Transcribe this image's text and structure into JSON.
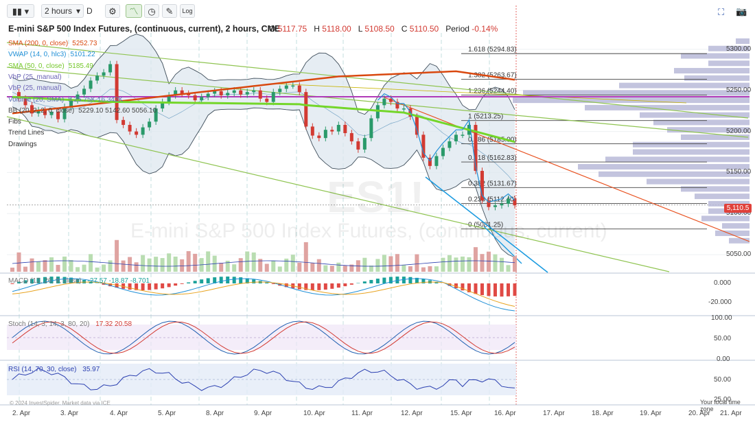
{
  "toolbar": {
    "chart_type_icon": "candles-icon",
    "interval": "2 hours",
    "interval_caret": "▾",
    "period_letter": "D",
    "log_label": "Log"
  },
  "header": {
    "title": "E-mini S&P 500 Index Futures, (continuous, current), 2 hours, CME",
    "open_label": "O",
    "open": "5117.75",
    "high_label": "H",
    "high": "5118.00",
    "low_label": "L",
    "low": "5108.50",
    "close_label": "C",
    "close": "5110.50",
    "period_label": "Period",
    "period": "-0.14%"
  },
  "legend": [
    {
      "label": "SMA (200, 0, close)",
      "value": "5252.73",
      "color": "#d9480f"
    },
    {
      "label": "VWAP (14, 0, hlc3)",
      "value": "5101.22",
      "color": "#1f8fd6"
    },
    {
      "label": "SMA (50, 0, close)",
      "value": "5185.49",
      "color": "#74c72a"
    },
    {
      "label": "VbP (25, manual)",
      "value": "",
      "color": "#6b63b5"
    },
    {
      "label": "VbP (25, manual)",
      "value": "",
      "color": "#6b63b5"
    },
    {
      "label": "Volume (20, SMA)",
      "value": "5,25.75K  16.342K",
      "color": "#5b6fb0"
    },
    {
      "label": "BB (20, 2, 2, 0, close)",
      "value": "5229.10  5142.60  5056.10",
      "color": "#444444"
    },
    {
      "label": "Fibs",
      "value": "",
      "color": "#333333"
    },
    {
      "label": "Trend Lines",
      "value": "",
      "color": "#333333"
    },
    {
      "label": "Drawings",
      "value": "",
      "color": "#333333"
    }
  ],
  "watermark": {
    "symbol": "ES1!",
    "name": "E-mini S&P 500 Index Futures, (continuous, current)"
  },
  "last_price": "5,110.5",
  "price_axis": [
    "5300.00",
    "5250.00",
    "5200.00",
    "5150.00",
    "5100.00",
    "5050.00"
  ],
  "macd": {
    "label": "MACD (12, 26, 9, close)",
    "values": "-27.57  -18.87  -8.701",
    "axis": [
      "0.000",
      "-20.000"
    ]
  },
  "stoch": {
    "label": "Stoch (14, 3, 14, 3, 80, 20)",
    "values": "17.32  20.58",
    "axis": [
      "100.00",
      "50.00",
      "0.00"
    ]
  },
  "rsi": {
    "label": "RSI (14, 70, 30, close)",
    "value": "35.97",
    "axis": [
      "50.00",
      "25.00"
    ]
  },
  "footer": {
    "copyright": "© 2024 InvestSpider. Market data via ICE",
    "timezone": "Your local time zone"
  },
  "chart_data": {
    "type": "line",
    "title": "E-mini S&P 500 Index Futures, (continuous, current), 2 hours, CME",
    "x_labels": [
      "2. Apr",
      "3. Apr",
      "4. Apr",
      "5. Apr",
      "8. Apr",
      "9. Apr",
      "10. Apr",
      "11. Apr",
      "12. Apr",
      "15. Apr",
      "16. Apr",
      "17. Apr",
      "18. Apr",
      "19. Apr",
      "20. Apr",
      "21. Apr"
    ],
    "ylim": [
      5030,
      5320
    ],
    "price_ticks": [
      5300,
      5250,
      5200,
      5150,
      5100,
      5050
    ],
    "close_series": [
      5248,
      5240,
      5232,
      5222,
      5226,
      5220,
      5224,
      5215,
      5230,
      5238,
      5245,
      5252,
      5262,
      5268,
      5272,
      5282,
      5214,
      5208,
      5200,
      5196,
      5205,
      5212,
      5228,
      5236,
      5244,
      5250,
      5246,
      5244,
      5238,
      5242,
      5246,
      5249,
      5244,
      5247,
      5250,
      5245,
      5248,
      5250,
      5240,
      5236,
      5248,
      5252,
      5256,
      5256,
      5248,
      5206,
      5195,
      5192,
      5202,
      5200,
      5208,
      5198,
      5188,
      5178,
      5192,
      5216,
      5232,
      5240,
      5236,
      5228,
      5228,
      5218,
      5196,
      5168,
      5158,
      5170,
      5180,
      5188,
      5196,
      5196,
      5208,
      5152,
      5116,
      5108,
      5110,
      5112,
      5118,
      5110
    ],
    "fib_levels": [
      {
        "label": "1.618 (5294.83)",
        "value": 5294.83
      },
      {
        "label": "1.382 (5263.67)",
        "value": 5263.67
      },
      {
        "label": "1.236 (5244.40)",
        "value": 5244.4
      },
      {
        "label": "1 (5213.25)",
        "value": 5213.25
      },
      {
        "label": "0.786 (5185.00)",
        "value": 5185.0
      },
      {
        "label": "0.618 (5162.83)",
        "value": 5162.83
      },
      {
        "label": "0.382 (5131.67)",
        "value": 5131.67
      },
      {
        "label": "0.236 (5112.40)",
        "value": 5112.4
      },
      {
        "label": "0 (5081.25)",
        "value": 5081.25
      }
    ],
    "sma200_value": 5252.73,
    "vwap_value": 5101.22,
    "sma50_value": 5185.49,
    "last": 5110.5
  }
}
